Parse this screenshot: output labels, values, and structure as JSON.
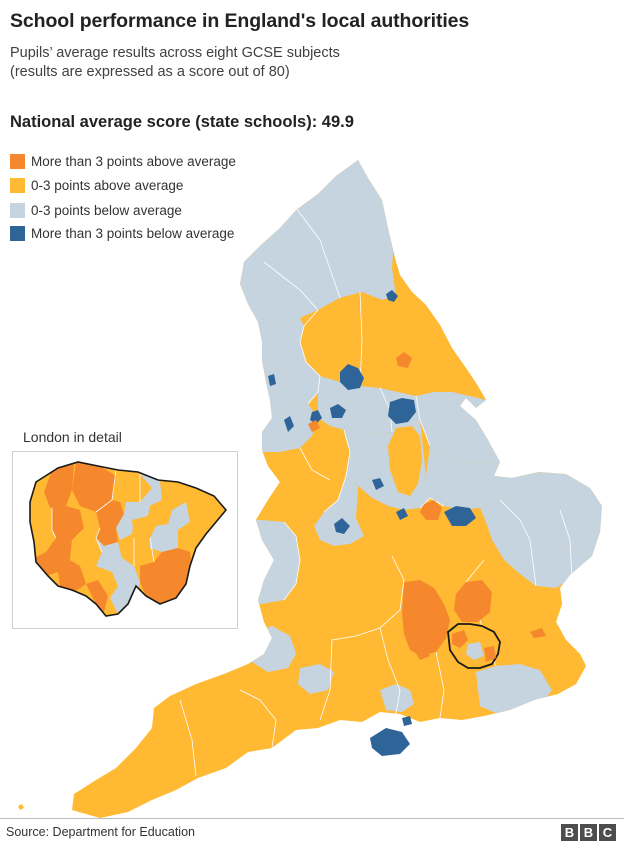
{
  "header": {
    "title": "School performance in England's local authorities",
    "subtitle_line1": "Pupils’ average results across eight GCSE subjects",
    "subtitle_line2": "(results are expressed as a score out of 80)",
    "national_average": "National average score (state schools): 49.9"
  },
  "legend": {
    "items": [
      {
        "label": "More than 3 points above average",
        "color": "#f5872c"
      },
      {
        "label": "0-3 points above average",
        "color": "#ffb933"
      },
      {
        "label": "0-3 points below average",
        "color": "#c5d4df"
      },
      {
        "label": "More than 3 points below average",
        "color": "#2f6499"
      }
    ]
  },
  "map": {
    "colors": {
      "well_above": "#f5872c",
      "above": "#ffb933",
      "below": "#c5d4df",
      "well_below": "#2f6499",
      "boundary": "#ffffff",
      "outline": "#1a1a1a"
    }
  },
  "inset": {
    "title": "London in detail"
  },
  "footer": {
    "source": "Source: Department for Education",
    "logo_letters": [
      "B",
      "B",
      "C"
    ]
  }
}
